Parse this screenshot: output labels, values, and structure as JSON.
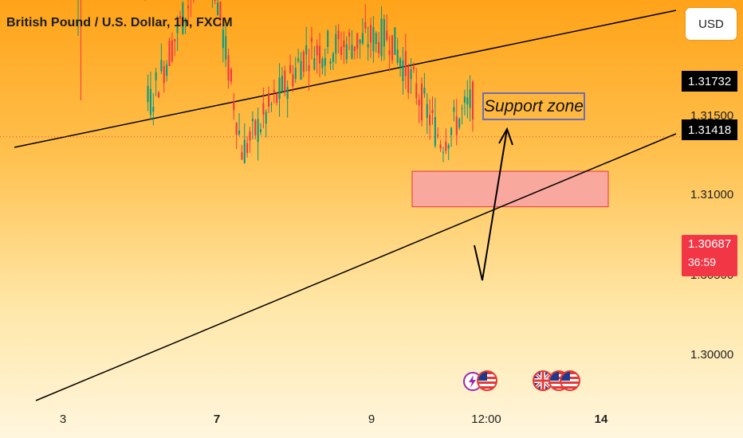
{
  "header": {
    "title": "British Pound / U.S. Dollar, 1h, FXCM"
  },
  "toolbar": {
    "currency_label": "USD"
  },
  "price_axis": {
    "tags": [
      "1.31732",
      "1.31418"
    ],
    "labels": [
      "1.31500",
      "1.31000",
      "1.30500",
      "1.30000"
    ],
    "last_price": "1.30687",
    "countdown": "36:59"
  },
  "time_axis": {
    "labels": [
      {
        "text": "3",
        "bold": false
      },
      {
        "text": "7",
        "bold": true
      },
      {
        "text": "9",
        "bold": false
      },
      {
        "text": "12:00",
        "bold": false
      },
      {
        "text": "14",
        "bold": true
      }
    ]
  },
  "annotations": {
    "support_label": "Support zone"
  },
  "colors": {
    "up": "#089981",
    "down": "#f23645",
    "zone": "#ff6a40",
    "target_zone": "#f7a4a4"
  },
  "icons": [
    "lightning-event-icon",
    "us-flag-icon",
    "uk-flag-icon",
    "us-flag-icon",
    "us-flag-icon"
  ],
  "chart_data": {
    "type": "candlestick",
    "title": "British Pound / U.S. Dollar, 1h, FXCM",
    "x_ticks": [
      "3",
      "7",
      "9",
      "12:00",
      "14"
    ],
    "y_ticks": [
      1.3,
      1.305,
      1.31,
      1.315
    ],
    "ylim": [
      1.2965,
      1.3215
    ],
    "last_price": 1.30687,
    "horizontal_levels": [
      1.31732,
      1.31418
    ],
    "zones": [
      {
        "label": "Support zone",
        "low": 1.31418,
        "high": 1.31732
      },
      {
        "label": "",
        "low": 1.3047,
        "high": 1.3058
      }
    ],
    "segments": [
      {
        "name": "rise",
        "n": 22,
        "start": 1.312,
        "end": 1.3155
      },
      {
        "name": "drop",
        "n": 3,
        "start": 1.3155,
        "end": 1.308
      },
      {
        "name": "range",
        "n": 22,
        "start": 1.308,
        "end": 1.3125
      },
      {
        "name": "decline",
        "n": 13,
        "start": 1.3125,
        "end": 1.3065
      },
      {
        "name": "rebound",
        "n": 24,
        "start": 1.3065,
        "end": 1.3095
      },
      {
        "name": "recovery",
        "n": 30,
        "start": 1.3095,
        "end": 1.31
      },
      {
        "name": "slide",
        "n": 20,
        "start": 1.31,
        "end": 1.3068
      },
      {
        "name": "bounce",
        "n": 12,
        "start": 1.3068,
        "end": 1.308
      }
    ],
    "grid": false
  }
}
